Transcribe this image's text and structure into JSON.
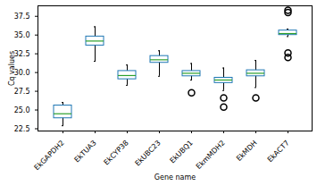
{
  "chart_data": {
    "type": "box",
    "x_label": "Gene name",
    "y_label": "Cq values",
    "categories": [
      "EkGAPDH2",
      "EkTUA3",
      "EkCYP38",
      "EkUBC23",
      "EkUBQ1",
      "EkmMDH2",
      "EkMDH",
      "EkACT7"
    ],
    "whisker_low": [
      22.9,
      31.5,
      28.3,
      29.5,
      29.0,
      27.6,
      28.0,
      34.8
    ],
    "q1": [
      23.9,
      33.6,
      29.1,
      31.3,
      29.5,
      28.6,
      29.5,
      35.0
    ],
    "median": [
      24.5,
      34.2,
      29.6,
      31.7,
      29.9,
      29.0,
      29.9,
      35.2
    ],
    "q3": [
      25.6,
      34.8,
      30.2,
      32.2,
      30.2,
      29.3,
      30.3,
      35.6
    ],
    "whisker_high": [
      26.0,
      36.1,
      31.0,
      32.9,
      31.2,
      30.6,
      31.6,
      35.8
    ],
    "outliers": [
      [],
      [],
      [],
      [],
      [
        27.3
      ],
      [
        26.6,
        25.4
      ],
      [
        26.6
      ],
      [
        38.3,
        38.0,
        32.6,
        32.0
      ]
    ],
    "color": "#1f77b4",
    "ylim": [
      22.2,
      38.9
    ],
    "yticks": [
      22.5,
      {
        "value": 25,
        "label": "25.0"
      },
      27.5,
      {
        "value": 30,
        "label": "30.0"
      },
      32.5,
      {
        "value": 35,
        "label": "35.0"
      },
      37.5
    ],
    "grid": false
  }
}
